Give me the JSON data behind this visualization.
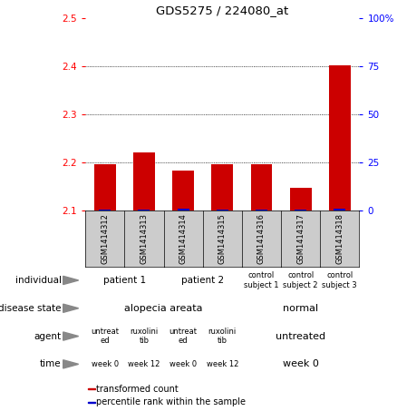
{
  "title": "GDS5275 / 224080_at",
  "samples": [
    "GSM1414312",
    "GSM1414313",
    "GSM1414314",
    "GSM1414315",
    "GSM1414316",
    "GSM1414317",
    "GSM1414318"
  ],
  "red_values": [
    2.197,
    2.221,
    2.184,
    2.197,
    2.197,
    2.148,
    2.402
  ],
  "blue_values": [
    2.102,
    2.103,
    2.104,
    2.103,
    2.103,
    2.102,
    2.104
  ],
  "ylim_left": [
    2.1,
    2.5
  ],
  "ylim_right": [
    0,
    100
  ],
  "yticks_left": [
    2.1,
    2.2,
    2.3,
    2.4,
    2.5
  ],
  "yticks_right": [
    0,
    25,
    50,
    75,
    100
  ],
  "ytick_labels_right": [
    "0",
    "25",
    "50",
    "75",
    "100%"
  ],
  "bar_color_red": "#cc0000",
  "bar_color_blue": "#0000cc",
  "sample_box_color": "#cccccc",
  "annotation_rows": [
    {
      "label": "individual",
      "groups": [
        {
          "text": "patient 1",
          "cols": [
            0,
            1
          ],
          "color": "#bbeecc"
        },
        {
          "text": "patient 2",
          "cols": [
            2,
            3
          ],
          "color": "#bbeecc"
        },
        {
          "text": "control\nsubject 1",
          "cols": [
            4
          ],
          "color": "#99dd88"
        },
        {
          "text": "control\nsubject 2",
          "cols": [
            5
          ],
          "color": "#99dd88"
        },
        {
          "text": "control\nsubject 3",
          "cols": [
            6
          ],
          "color": "#99dd88"
        }
      ]
    },
    {
      "label": "disease state",
      "groups": [
        {
          "text": "alopecia areata",
          "cols": [
            0,
            1,
            2,
            3
          ],
          "color": "#88aaee"
        },
        {
          "text": "normal",
          "cols": [
            4,
            5,
            6
          ],
          "color": "#aaccee"
        }
      ]
    },
    {
      "label": "agent",
      "groups": [
        {
          "text": "untreat\ned",
          "cols": [
            0
          ],
          "color": "#ffbbcc"
        },
        {
          "text": "ruxolini\ntib",
          "cols": [
            1
          ],
          "color": "#ddaaee"
        },
        {
          "text": "untreat\ned",
          "cols": [
            2
          ],
          "color": "#ffbbcc"
        },
        {
          "text": "ruxolini\ntib",
          "cols": [
            3
          ],
          "color": "#ddaaee"
        },
        {
          "text": "untreated",
          "cols": [
            4,
            5,
            6
          ],
          "color": "#ffbbcc"
        }
      ]
    },
    {
      "label": "time",
      "groups": [
        {
          "text": "week 0",
          "cols": [
            0
          ],
          "color": "#ddbb88"
        },
        {
          "text": "week 12",
          "cols": [
            1
          ],
          "color": "#ddbb88"
        },
        {
          "text": "week 0",
          "cols": [
            2
          ],
          "color": "#ddbb88"
        },
        {
          "text": "week 12",
          "cols": [
            3
          ],
          "color": "#ddbb88"
        },
        {
          "text": "week 0",
          "cols": [
            4,
            5,
            6
          ],
          "color": "#ddbb88"
        }
      ]
    }
  ],
  "legend_items": [
    {
      "color": "#cc0000",
      "label": "transformed count"
    },
    {
      "color": "#0000cc",
      "label": "percentile rank within the sample"
    }
  ]
}
